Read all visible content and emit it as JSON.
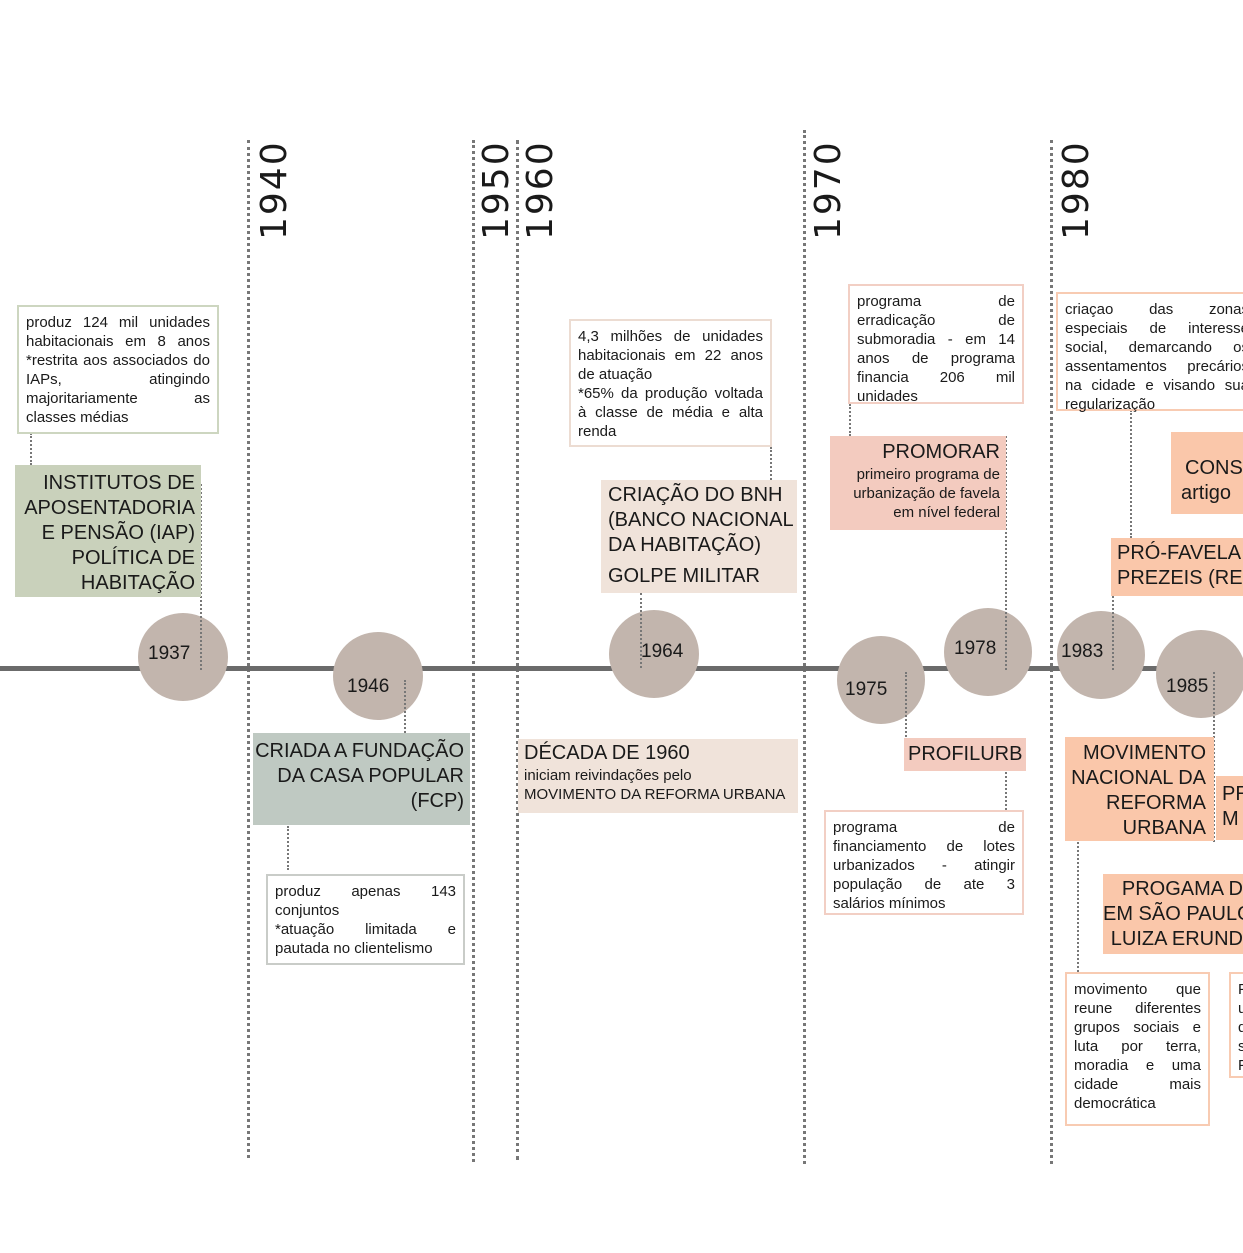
{
  "decades": [
    {
      "id": "1940",
      "label": "1940"
    },
    {
      "id": "1950",
      "label": "1950"
    },
    {
      "id": "1960",
      "label": "1960"
    },
    {
      "id": "1970",
      "label": "1970"
    },
    {
      "id": "1980",
      "label": "1980"
    }
  ],
  "years": {
    "y1937": "1937",
    "y1946": "1946",
    "y1964": "1964",
    "y1975": "1975",
    "y1978": "1978",
    "y1983": "1983",
    "y1985": "1985"
  },
  "events": {
    "iap": {
      "title": "INSTITUTOS DE APOSENTADORIA E PENSÃO (IAP) POLÍTICA DE HABITAÇÃO",
      "note": "produz 124 mil unidades habitacionais em 8 anos *restrita aos associados do IAPs, atingindo majoritariamente as classes médias"
    },
    "fcp": {
      "title": "CRIADA A FUNDAÇÃO DA CASA POPULAR (FCP)",
      "note_line1": "produz apenas 143 conjuntos",
      "note_line2": "*atuação limitada e pautada no clientelismo"
    },
    "bnh": {
      "title": "CRIAÇÃO DO BNH (BANCO NACIONAL DA HABITAÇÃO)",
      "subtitle": "GOLPE MILITAR",
      "note_line1": "4,3 milhões de unidades habitacionais em 22 anos de atuação",
      "note_line2": "*65% da produção voltada à classe de média e alta renda"
    },
    "decada1960": {
      "title": "DÉCADA DE 1960",
      "text_line1": "iniciam reivindações pelo",
      "text_line2": "MOVIMENTO DA REFORMA URBANA"
    },
    "promorar": {
      "title": "PROMORAR",
      "subtitle": "primeiro programa de urbanização de favela em nível federal",
      "note": "programa de erradicação de submoradia - em 14 anos de programa financia 206 mil unidades"
    },
    "profilurb": {
      "title": "PROFILURB",
      "note": "programa de financiamento de lotes urbanizados - atingir população de ate 3 salários mínimos"
    },
    "zeis_note": "criaçao das zonas especiais de interesse social, demarcando os assentamentos precários na cidade e visando sua regularização",
    "cons": {
      "line1": "CONS",
      "line2": "artigo"
    },
    "prezeis": {
      "line1": "PRÓ-FAVELA",
      "line2": "PREZEIS (REC"
    },
    "mnru": {
      "title": "MOVIMENTO NACIONAL DA REFORMA URBANA",
      "note": "movimento que reune diferentes grupos sociais e luta por terra, moradia e uma cidade mais democrática"
    },
    "pm": {
      "line1": "PR",
      "line2": "M"
    },
    "progama": {
      "line1": "PROGAMA D",
      "line2": "EM SÃO PAULO",
      "line3": "LUIZA ERUND"
    },
    "cut_note": {
      "l1": "P",
      "l2": "u",
      "l3": "d",
      "l4": "s",
      "l5": "F"
    }
  },
  "colors": {
    "green": "#c9d1bb",
    "teal": "#bfc9c2",
    "beige": "#f0e3da",
    "pink": "#f3cbbf",
    "orange": "#fac7aa",
    "circle": "#c2b5ad",
    "axis": "#6b6b6b"
  }
}
